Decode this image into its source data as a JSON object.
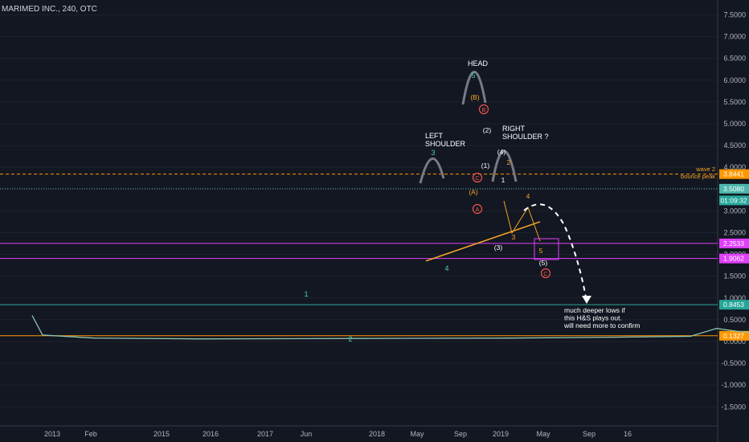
{
  "header": {
    "symbol_title": "MARIMED INC., 240, OTC"
  },
  "colors": {
    "background": "#131722",
    "price": "#8fc7b6",
    "hs_outline": "#787b86",
    "wave_teal": "#4dd0a6",
    "wave_orange": "#f5a623",
    "trendline": "#f5a623",
    "magenta": "#e040fb",
    "green": "#26a69a",
    "orange_line": "#ff9800",
    "teal_dotted": "#4db6ac",
    "red_circle": "#ef5350"
  },
  "chart_data": {
    "type": "line",
    "y_axis": {
      "ylim": [
        -1.6,
        7.7
      ],
      "ticks": [
        "7.5000",
        "7.0000",
        "6.5000",
        "6.0000",
        "5.5000",
        "5.0000",
        "4.5000",
        "4.0000",
        "3.5000",
        "3.0000",
        "2.5000",
        "2.0000",
        "1.5000",
        "1.0000",
        "0.5000",
        "0.0000",
        "-0.5000",
        "-1.0000",
        "-1.5000"
      ]
    },
    "x_axis": {
      "ticks": [
        "2013",
        "Feb",
        "2015",
        "2016",
        "2017",
        "Jun",
        "2018",
        "May",
        "Sep",
        "2019",
        "May",
        "Sep",
        "16"
      ]
    },
    "series": [
      {
        "values": [
          [
            2012.88,
            0.6
          ],
          [
            2012.9,
            0.15
          ],
          [
            2013.0,
            0.08
          ],
          [
            2013.2,
            0.06
          ],
          [
            2013.5,
            0.07
          ],
          [
            2013.8,
            0.08
          ],
          [
            2014.0,
            0.1
          ],
          [
            2014.15,
            0.12
          ],
          [
            2014.2,
            0.3
          ],
          [
            2014.25,
            0.22
          ],
          [
            2014.6,
            0.17
          ],
          [
            2015.0,
            0.15
          ],
          [
            2015.4,
            0.13
          ],
          [
            2015.6,
            0.2
          ],
          [
            2015.8,
            0.14
          ],
          [
            2016.0,
            0.12
          ],
          [
            2016.5,
            0.13
          ],
          [
            2017.0,
            0.17
          ],
          [
            2017.2,
            0.25
          ],
          [
            2017.35,
            0.3
          ],
          [
            2017.5,
            0.3
          ],
          [
            2017.7,
            0.35
          ],
          [
            2017.75,
            0.75
          ],
          [
            2017.8,
            0.7
          ],
          [
            2017.9,
            0.7
          ],
          [
            2017.97,
            0.62
          ],
          [
            2018.05,
            0.58
          ],
          [
            2018.12,
            0.5
          ],
          [
            2018.2,
            0.35
          ],
          [
            2018.28,
            0.2
          ],
          [
            2018.32,
            0.3
          ],
          [
            2018.38,
            0.55
          ],
          [
            2018.45,
            0.7
          ],
          [
            2018.52,
            0.72
          ],
          [
            2018.56,
            0.65
          ],
          [
            2018.6,
            1.1
          ],
          [
            2018.66,
            1.4
          ],
          [
            2018.72,
            1.2
          ],
          [
            2018.8,
            1.35
          ],
          [
            2018.88,
            1.25
          ],
          [
            2018.93,
            1.0
          ],
          [
            2018.98,
            1.2
          ],
          [
            2019.03,
            1.5
          ],
          [
            2019.07,
            1.5
          ],
          [
            2019.1,
            2.2
          ],
          [
            2019.14,
            4.0
          ],
          [
            2019.18,
            3.0
          ],
          [
            2019.22,
            2.4
          ],
          [
            2019.27,
            2.7
          ],
          [
            2019.32,
            2.5
          ],
          [
            2019.38,
            2.8
          ],
          [
            2019.43,
            2.5
          ],
          [
            2019.48,
            2.9
          ],
          [
            2019.53,
            2.7
          ],
          [
            2019.58,
            3.5
          ],
          [
            2019.62,
            5.5
          ],
          [
            2019.65,
            4.5
          ],
          [
            2019.68,
            3.9
          ],
          [
            2019.7,
            3.3
          ],
          [
            2019.72,
            4.5
          ],
          [
            2019.75,
            5.1
          ],
          [
            2019.78,
            4.8
          ],
          [
            2019.82,
            4.3
          ],
          [
            2019.84,
            2.6
          ],
          [
            2019.86,
            3.8
          ],
          [
            2019.9,
            3.4
          ],
          [
            2019.93,
            3.5
          ]
        ]
      }
    ],
    "horizontal_lines": [
      {
        "y": 3.8441,
        "color": "#ff9800",
        "style": "dashed",
        "label": "3.8441"
      },
      {
        "y": 3.508,
        "color": "#4db6ac",
        "style": "dotted",
        "label": "3.5080"
      },
      {
        "y": 2.2533,
        "color": "#e040fb",
        "style": "solid",
        "label": "2.2533"
      },
      {
        "y": 1.9062,
        "color": "#e040fb",
        "style": "solid",
        "label": "1.9062"
      },
      {
        "y": 0.8453,
        "color": "#26a69a",
        "style": "solid",
        "label": "0.8453"
      },
      {
        "y": 0.1327,
        "color": "#ff9800",
        "style": "solid",
        "label": "0.1327"
      }
    ],
    "price_tags": [
      {
        "y": 3.0,
        "label": "01:09:32",
        "color": "#26a69a"
      }
    ],
    "annotations": {
      "head": "HEAD",
      "left_shoulder": "LEFT\nSHOULDER",
      "right_shoulder": "RIGHT\nSHOULDER ?",
      "wave2_note": "wave 2",
      "bounce_note": "bounce peak",
      "bottom_note": "much deeper lows if\nthis H&S plays out.\nwill need more to confirm"
    },
    "wave_labels_teal": [
      "1",
      "2",
      "3",
      "4",
      "5"
    ],
    "wave_labels_white": [
      "(4)",
      "(2)",
      "(1)",
      "(3)",
      "(5)",
      "1"
    ],
    "wave_labels_orange": [
      "(B)",
      "(A)",
      "2",
      "3",
      "4",
      "5"
    ],
    "wave_labels_circle": [
      "B",
      "C",
      "A",
      "C"
    ]
  }
}
